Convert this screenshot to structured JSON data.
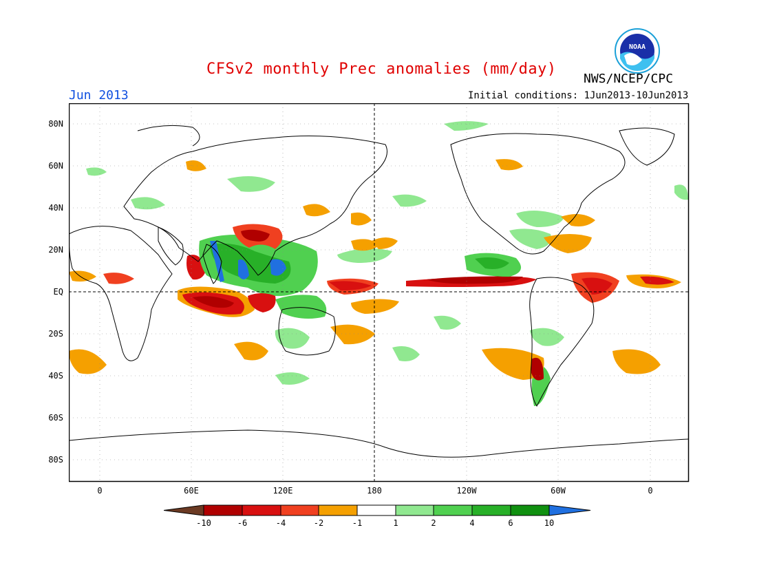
{
  "title": "CFSv2 monthly Prec anomalies (mm/day)",
  "org": "NWS/NCEP/CPC",
  "month": "Jun 2013",
  "initial_conditions": "Initial conditions: 1Jun2013-10Jun2013",
  "logo_text": "NOAA",
  "lat_labels": [
    "80N",
    "60N",
    "40N",
    "20N",
    "EQ",
    "20S",
    "40S",
    "60S",
    "80S"
  ],
  "lon_labels": [
    "0",
    "60E",
    "120E",
    "180",
    "120W",
    "60W",
    "0"
  ],
  "colorbar": {
    "labels": [
      "-10",
      "-6",
      "-4",
      "-2",
      "-1",
      "1",
      "2",
      "4",
      "6",
      "10"
    ],
    "colors": [
      "#6b3a23",
      "#b00000",
      "#d81010",
      "#f04020",
      "#f5a000",
      "#ffffff",
      "#90e890",
      "#50d050",
      "#28b028",
      "#109010",
      "#2070e0"
    ]
  }
}
